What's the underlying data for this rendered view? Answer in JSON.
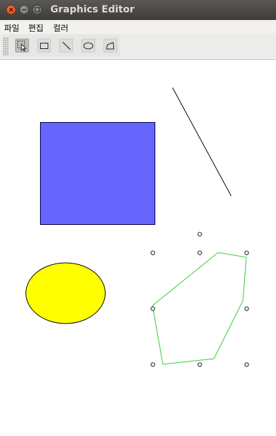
{
  "window": {
    "title": "Graphics Editor"
  },
  "menu": {
    "items": [
      "파일",
      "편집",
      "컬러"
    ]
  },
  "toolbar": {
    "tools": [
      {
        "name": "select-tool",
        "icon": "select-arrow-icon",
        "active": true
      },
      {
        "name": "rectangle-tool",
        "icon": "rectangle-icon",
        "active": false
      },
      {
        "name": "line-tool",
        "icon": "line-icon",
        "active": false
      },
      {
        "name": "oval-tool",
        "icon": "oval-icon",
        "active": false
      },
      {
        "name": "polygon-tool",
        "icon": "polygon-icon",
        "active": false
      }
    ]
  },
  "canvas": {
    "shapes": [
      {
        "type": "rectangle",
        "fill": "#6666ff",
        "stroke": "#000044"
      },
      {
        "type": "line",
        "stroke": "#000000"
      },
      {
        "type": "ellipse",
        "fill": "#ffff00",
        "stroke": "#000000"
      },
      {
        "type": "polygon",
        "fill": "none",
        "stroke": "#33cc33",
        "selected": true
      }
    ]
  },
  "colors": {
    "titlebar": "#3c3b37",
    "close_button": "#df4a16",
    "selection_handle": "#000000"
  }
}
